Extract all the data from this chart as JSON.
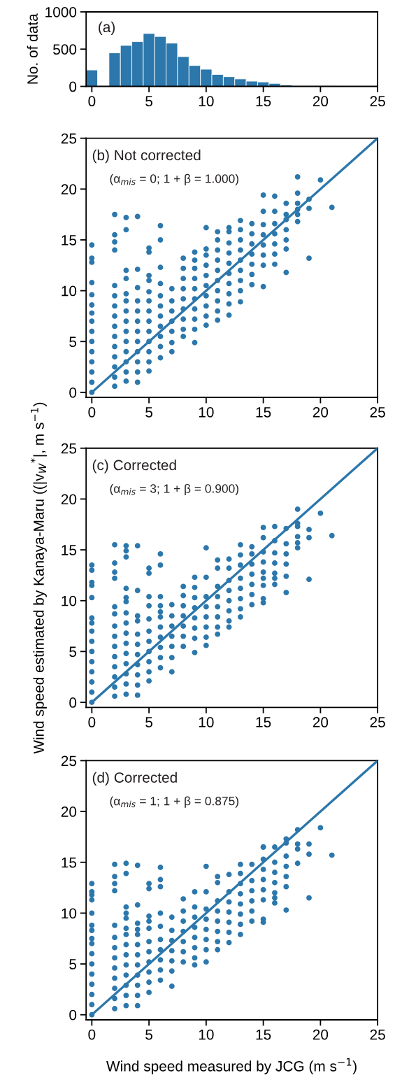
{
  "chart_data": [
    {
      "type": "histogram",
      "ylabel": "No. of data",
      "annotations": [
        "(a)"
      ],
      "color": "#2c77ab",
      "xlim": [
        -0.5,
        25
      ],
      "ylim": [
        0,
        1000
      ],
      "xticks": [
        0,
        5,
        10,
        15,
        20,
        25
      ],
      "yticks": [
        0,
        500,
        1000
      ],
      "bins": [
        -0.5,
        0.5,
        1.5,
        2.5,
        3.5,
        4.5,
        5.5,
        6.5,
        7.5,
        8.5,
        9.5,
        10.5,
        11.5,
        12.5,
        13.5,
        14.5,
        15.5,
        16.5,
        17.5,
        18.5,
        19.5,
        20.5,
        21.5
      ],
      "values": [
        220,
        10,
        450,
        550,
        600,
        710,
        670,
        580,
        400,
        280,
        230,
        160,
        130,
        100,
        70,
        60,
        40,
        20,
        10,
        10,
        10,
        10
      ]
    },
    {
      "type": "scatter",
      "annotations": [
        "(b) Not corrected",
        "(α$_{mis}$ = 0; 1 + β = 1.000)"
      ],
      "xlim": [
        -0.5,
        25
      ],
      "ylim": [
        -0.5,
        25
      ],
      "xticks": [
        0,
        5,
        10,
        15,
        20,
        25
      ],
      "yticks": [
        0,
        5,
        10,
        15,
        20,
        25
      ],
      "series": [
        {
          "type": "scatter",
          "color": "#2c77ab",
          "marker": "circle",
          "x": [
            0,
            0,
            0,
            0,
            0,
            0,
            0,
            0,
            0,
            0,
            0,
            0,
            0,
            0,
            0,
            2,
            2,
            2,
            2,
            2,
            2,
            2,
            2,
            2,
            2,
            2,
            2,
            2,
            2,
            2,
            3,
            3,
            3,
            3,
            3,
            3,
            3,
            3,
            3,
            3,
            3,
            3,
            3,
            3,
            4,
            4,
            4,
            4,
            4,
            4,
            4,
            4,
            4,
            4,
            4,
            4,
            5,
            5,
            5,
            5,
            5,
            5,
            5,
            5,
            5,
            5,
            5,
            5,
            5,
            6,
            6,
            6,
            6,
            6,
            6,
            6,
            6,
            6,
            6,
            6,
            7,
            7,
            7,
            7,
            7,
            7,
            7,
            8,
            8,
            8,
            8,
            8,
            8,
            8,
            8,
            8,
            9,
            9,
            9,
            9,
            9,
            9,
            9,
            9,
            9,
            9,
            10,
            10,
            10,
            10,
            10,
            10,
            10,
            10,
            10,
            10,
            11,
            11,
            11,
            11,
            11,
            11,
            11,
            11,
            11,
            11,
            12,
            12,
            12,
            12,
            12,
            12,
            12,
            12,
            12,
            12,
            13,
            13,
            13,
            13,
            13,
            13,
            13,
            13,
            13,
            14,
            14,
            14,
            14,
            14,
            14,
            14,
            15,
            15,
            15,
            15,
            15,
            15,
            15,
            15,
            16,
            16,
            16,
            16,
            16,
            16,
            16,
            17,
            17,
            17,
            17,
            17,
            17,
            17,
            18,
            18,
            18,
            18,
            18,
            18,
            19,
            19,
            19,
            20,
            21
          ],
          "values": [
            0,
            1,
            2,
            3,
            4,
            5,
            6,
            7,
            7.8,
            8.6,
            9.6,
            10.8,
            12.8,
            13.2,
            14.5,
            0.6,
            1.5,
            2.5,
            3.5,
            4.5,
            5.5,
            6.5,
            7.5,
            8.5,
            9.5,
            10.5,
            14,
            14.8,
            15.5,
            17.5,
            1.1,
            2,
            3,
            4,
            5,
            6,
            7,
            8,
            9,
            9.7,
            11.2,
            12,
            16,
            17.2,
            1,
            2,
            3,
            4,
            5,
            6,
            7,
            8,
            9,
            10.3,
            12.1,
            17.3,
            2.1,
            3,
            4,
            5,
            6,
            7,
            8,
            9,
            9.9,
            11,
            11.5,
            13.8,
            14.2,
            3.4,
            4.5,
            5.5,
            6.5,
            7.5,
            8.5,
            9.5,
            10.7,
            12.3,
            15,
            16.4,
            4,
            4.9,
            6,
            7,
            8,
            9,
            10.2,
            5.5,
            6.2,
            7.2,
            8.2,
            9.2,
            10.2,
            11.2,
            12.2,
            13.2,
            4.9,
            6.2,
            7.2,
            8.2,
            9.2,
            10.2,
            11.2,
            12.2,
            13,
            13.8,
            6.6,
            7.5,
            8.5,
            9.5,
            10.5,
            11.5,
            12.5,
            13.5,
            14.1,
            16.2,
            7.1,
            8,
            9,
            10,
            11,
            12,
            13,
            14,
            15,
            15.8,
            7.6,
            8.7,
            9.7,
            10.7,
            11.7,
            12.7,
            13.7,
            14.7,
            15.8,
            16.2,
            8.9,
            10,
            11,
            12,
            13,
            14,
            15,
            16,
            16.9,
            10.6,
            11.6,
            12.6,
            13.6,
            14.6,
            15.6,
            16.6,
            10.4,
            12.5,
            13.5,
            14.5,
            15.5,
            16.5,
            17.8,
            19.4,
            12.6,
            13.6,
            14.6,
            15.6,
            16.6,
            17.8,
            19.3,
            11.8,
            14.1,
            15,
            16,
            17,
            17.5,
            18.6,
            16.8,
            17.5,
            18,
            18.6,
            19.6,
            21.2,
            13.2,
            18.1,
            19,
            20.9,
            18.2
          ]
        },
        {
          "type": "line",
          "color": "#2c77ab",
          "x": [
            0,
            25
          ],
          "values": [
            0,
            25
          ]
        }
      ]
    },
    {
      "type": "scatter",
      "ylabel": "Wind speed estimated by Kanaya-Maru ((|v$_{W}$$^{*}$|, m s$^{−1}$)",
      "annotations": [
        "(c) Corrected",
        "(α$_{mis}$ = 3; 1 + β = 0.900)"
      ],
      "xlim": [
        -0.5,
        25
      ],
      "ylim": [
        -0.5,
        25
      ],
      "xticks": [
        0,
        5,
        10,
        15,
        20,
        25
      ],
      "yticks": [
        0,
        5,
        10,
        15,
        20,
        25
      ],
      "series": [
        {
          "type": "scatter",
          "color": "#2c77ab",
          "marker": "circle",
          "x": [
            0,
            0,
            0,
            0,
            0,
            0,
            0,
            0,
            0,
            0,
            0,
            0,
            0,
            0,
            0,
            2,
            2,
            2,
            2,
            2,
            2,
            2,
            2,
            2,
            2,
            2,
            2,
            2,
            2,
            3,
            3,
            3,
            3,
            3,
            3,
            3,
            3,
            3,
            3,
            3,
            3,
            3,
            3,
            3,
            4,
            4,
            4,
            4,
            4,
            4,
            4,
            4,
            4,
            4,
            4,
            5,
            5,
            5,
            5,
            5,
            5,
            5,
            5,
            5,
            5,
            5,
            6,
            6,
            6,
            6,
            6,
            6,
            6,
            6,
            6,
            6,
            6,
            7,
            7,
            7,
            7,
            7,
            7,
            7,
            8,
            8,
            8,
            8,
            8,
            8,
            8,
            9,
            9,
            9,
            9,
            9,
            9,
            9,
            9,
            10,
            10,
            10,
            10,
            10,
            10,
            10,
            10,
            11,
            11,
            11,
            11,
            11,
            11,
            11,
            11,
            12,
            12,
            12,
            12,
            12,
            12,
            12,
            12,
            13,
            13,
            13,
            13,
            13,
            13,
            13,
            13,
            14,
            14,
            14,
            14,
            14,
            14,
            14,
            15,
            15,
            15,
            15,
            15,
            15,
            15,
            15,
            15,
            16,
            16,
            16,
            16,
            16,
            16,
            16,
            17,
            17,
            17,
            17,
            17,
            17,
            18,
            18,
            18,
            18,
            18,
            18,
            19,
            19,
            19,
            20,
            21
          ],
          "values": [
            0,
            1,
            2,
            3,
            4,
            5,
            6,
            7,
            7.8,
            8.3,
            10.3,
            11.5,
            11.8,
            13,
            13.5,
            0.6,
            1.5,
            2.5,
            3.5,
            4.5,
            5.5,
            6.5,
            7.5,
            8.7,
            9.4,
            12.2,
            12.8,
            13.7,
            15.5,
            0.8,
            1.8,
            2.8,
            3.8,
            4.8,
            5.8,
            6.8,
            7.8,
            8.8,
            9.9,
            10.3,
            11.2,
            14.3,
            14.9,
            15.4,
            0.7,
            1.7,
            2.7,
            3.7,
            4.7,
            5.7,
            6.7,
            8,
            8.5,
            11,
            15.4,
            2.1,
            3,
            4,
            5,
            6,
            7,
            8.2,
            9.5,
            10.4,
            12.7,
            13.2,
            3.4,
            4.4,
            5.4,
            6.4,
            7.4,
            8.4,
            8.9,
            9.5,
            10.4,
            13.5,
            14.6,
            3,
            4.4,
            5.5,
            6.5,
            7.5,
            8.5,
            9.6,
            5.5,
            6.5,
            7.5,
            8.5,
            9.5,
            10.5,
            11.4,
            4.9,
            6.3,
            7.3,
            8.3,
            9.3,
            10.3,
            11.3,
            12.3,
            5.6,
            6.4,
            7.4,
            8.4,
            9.4,
            10.4,
            12.3,
            15.2,
            6.7,
            7.4,
            8.4,
            9.4,
            10.4,
            11.4,
            13.2,
            14,
            7.4,
            8,
            9,
            10,
            11,
            12,
            13.2,
            14.1,
            8.4,
            9.2,
            10.2,
            11.2,
            12.2,
            13.5,
            14.5,
            15.5,
            9.6,
            10.6,
            11.6,
            12.6,
            13.6,
            14.6,
            15.3,
            9.8,
            10.2,
            11.5,
            12.2,
            12.8,
            13.8,
            14.8,
            16.2,
            17.2,
            11.6,
            12.2,
            12.7,
            13.7,
            14.7,
            15.9,
            17.3,
            10.8,
            12.4,
            13.6,
            14.6,
            15.6,
            17.1,
            15.2,
            15.7,
            16.3,
            17.3,
            17.6,
            19,
            12.1,
            16.2,
            17,
            18.6,
            16.4
          ]
        },
        {
          "type": "line",
          "color": "#2c77ab",
          "x": [
            0,
            25
          ],
          "values": [
            0,
            25
          ]
        }
      ]
    },
    {
      "type": "scatter",
      "xlabel": "Wind speed measured by JCG (m s$^{−1}$)",
      "annotations": [
        "(d) Corrected",
        "(α$_{mis}$ = 1; 1 + β = 0.875)"
      ],
      "xlim": [
        -0.5,
        25
      ],
      "ylim": [
        -0.5,
        25
      ],
      "xticks": [
        0,
        5,
        10,
        15,
        20,
        25
      ],
      "yticks": [
        0,
        5,
        10,
        15,
        20,
        25
      ],
      "series": [
        {
          "type": "scatter",
          "color": "#2c77ab",
          "marker": "circle",
          "x": [
            0,
            0,
            0,
            0,
            0,
            0,
            0,
            0,
            0,
            0,
            0,
            0,
            0,
            0,
            0,
            0,
            2,
            2,
            2,
            2,
            2,
            2,
            2,
            2,
            2,
            2,
            2,
            2,
            2,
            3,
            3,
            3,
            3,
            3,
            3,
            3,
            3,
            3,
            3,
            3,
            3,
            3,
            3,
            4,
            4,
            4,
            4,
            4,
            4,
            4,
            4,
            4,
            4,
            4,
            4,
            5,
            5,
            5,
            5,
            5,
            5,
            5,
            5,
            5,
            5,
            5,
            6,
            6,
            6,
            6,
            6,
            6,
            6,
            6,
            6,
            6,
            7,
            7,
            7,
            7,
            7,
            7,
            7,
            8,
            8,
            8,
            8,
            8,
            8,
            8,
            9,
            9,
            9,
            9,
            9,
            9,
            9,
            9,
            10,
            10,
            10,
            10,
            10,
            10,
            10,
            10,
            11,
            11,
            11,
            11,
            11,
            11,
            11,
            11,
            12,
            12,
            12,
            12,
            12,
            12,
            12,
            13,
            13,
            13,
            13,
            13,
            13,
            13,
            13,
            14,
            14,
            14,
            14,
            14,
            14,
            15,
            15,
            15,
            15,
            15,
            15,
            15,
            15,
            15,
            16,
            16,
            16,
            16,
            16,
            16,
            16,
            17,
            17,
            17,
            17,
            17,
            17,
            17,
            18,
            18,
            18,
            18,
            19,
            19,
            19,
            20,
            21
          ],
          "values": [
            0,
            1,
            2,
            3,
            4,
            5,
            6,
            7,
            7.5,
            8.3,
            8.8,
            10,
            11.3,
            11.8,
            12.1,
            12.9,
            0.6,
            1.6,
            2.6,
            3.6,
            4.6,
            5.6,
            6.6,
            7.6,
            8.8,
            12.2,
            12.9,
            13.6,
            14.8,
            0.9,
            1.9,
            2.9,
            3.9,
            4.9,
            5.9,
            6.9,
            7.9,
            8.5,
            9.5,
            10,
            10.6,
            13.9,
            14.9,
            0.9,
            1.9,
            2.9,
            3.9,
            4.9,
            5.9,
            6.9,
            7.9,
            8.4,
            9,
            10.8,
            14.7,
            2.2,
            3.2,
            4.2,
            5.2,
            6.2,
            7.2,
            8.5,
            9.2,
            9.7,
            12.4,
            12.9,
            3.4,
            4.4,
            5.4,
            6.4,
            7.4,
            8.7,
            10,
            12.6,
            13.3,
            14.5,
            2.8,
            4.3,
            5.3,
            6.3,
            7.3,
            8.3,
            9.6,
            5.2,
            6.2,
            7.2,
            8.2,
            9.2,
            10.2,
            11.4,
            4.9,
            5.6,
            6.6,
            7.6,
            8.6,
            9.6,
            10.6,
            12.1,
            5.2,
            6.4,
            7.4,
            8.4,
            9.4,
            10.4,
            12.1,
            14.6,
            6.4,
            7.2,
            8.2,
            9.2,
            10.2,
            11.2,
            13,
            13.6,
            7.1,
            8.1,
            9.1,
            10.1,
            11.1,
            12.1,
            13.8,
            7.9,
            8.9,
            9.9,
            10.9,
            11.9,
            12.9,
            13.9,
            14.8,
            9.2,
            10.2,
            11.2,
            12.2,
            13.2,
            14.8,
            9.1,
            9.4,
            11.3,
            12.3,
            13.3,
            14.3,
            15.3,
            16.5,
            16.5,
            11,
            11.5,
            12,
            13,
            14,
            15,
            16.5,
            10.3,
            12.6,
            13.6,
            14.6,
            15.6,
            16.9,
            17.3,
            14.9,
            16.3,
            16.8,
            18.2,
            11.5,
            15.8,
            16.8,
            18.4,
            15.7
          ]
        },
        {
          "type": "line",
          "color": "#2c77ab",
          "x": [
            0,
            25
          ],
          "values": [
            0,
            25
          ]
        }
      ]
    }
  ]
}
